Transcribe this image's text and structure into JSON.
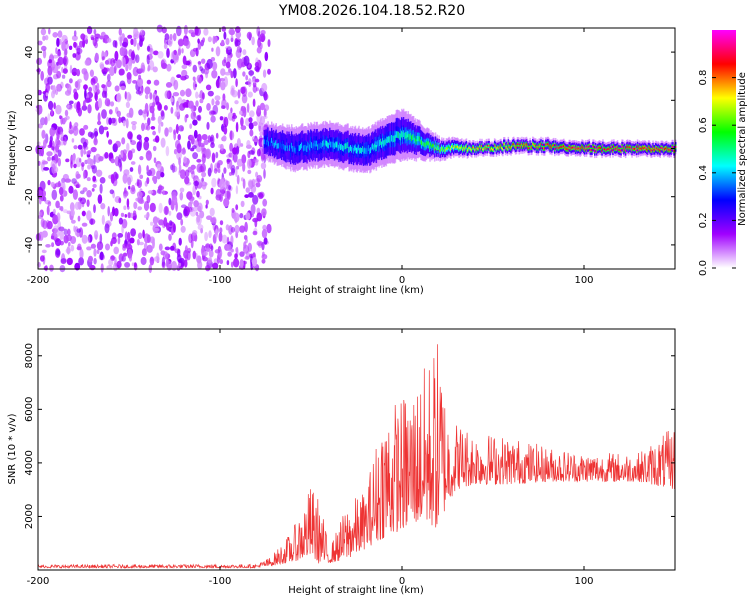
{
  "title": "YM08.2026.104.18.52.R20",
  "chart_data": [
    {
      "type": "heatmap",
      "name": "spectrogram",
      "xlabel": "Height of straight line (km)",
      "ylabel": "Frequency (Hz)",
      "xlim": [
        -200,
        150
      ],
      "ylim": [
        -50,
        50
      ],
      "xticks": [
        -200,
        -100,
        0,
        100
      ],
      "yticks": [
        -40,
        -20,
        0,
        20,
        40
      ],
      "colorbar": {
        "label": "Normalized spectral amplitude",
        "range": [
          0.0,
          1.0
        ],
        "ticks": [
          0.0,
          0.2,
          0.4,
          0.6,
          0.8
        ],
        "colormap": [
          "#ffffff",
          "#a000ff",
          "#0000ff",
          "#00ffff",
          "#00ff00",
          "#ffff00",
          "#ff0000",
          "#ff00ff"
        ]
      },
      "noise_region_end_x": -73,
      "signal_band": {
        "x": [
          -75,
          -60,
          -40,
          -20,
          0,
          20,
          40,
          60,
          80,
          100,
          120,
          150
        ],
        "center_y": [
          3,
          0,
          2,
          -1,
          6,
          0,
          0,
          1,
          1,
          0,
          0,
          0
        ],
        "half_width_y": [
          5,
          6,
          6,
          6,
          7,
          3,
          2,
          2,
          2,
          2,
          2,
          2
        ],
        "peak_amplitude": [
          0.35,
          0.35,
          0.4,
          0.4,
          0.45,
          0.6,
          0.75,
          0.8,
          0.85,
          0.9,
          0.9,
          0.9
        ]
      }
    },
    {
      "type": "line",
      "name": "snr",
      "xlabel": "Height of straight line (km)",
      "ylabel": "SNR (10 * v/v)",
      "xlim": [
        -200,
        150
      ],
      "ylim": [
        0,
        9000
      ],
      "xticks": [
        -200,
        -100,
        0,
        100
      ],
      "yticks": [
        2000,
        4000,
        6000,
        8000
      ],
      "color": "#ee3333",
      "series": [
        {
          "name": "SNR",
          "envelope": {
            "x": [
              -200,
              -80,
              -72,
              -60,
              -50,
              -45,
              -40,
              -30,
              -20,
              -10,
              0,
              10,
              20,
              25,
              30,
              40,
              60,
              80,
              100,
              130,
              150
            ],
            "low": [
              80,
              80,
              150,
              300,
              500,
              200,
              250,
              400,
              800,
              1200,
              1500,
              1800,
              1500,
              2500,
              3000,
              3200,
              3200,
              3300,
              3300,
              3300,
              3000
            ],
            "high": [
              200,
              220,
              500,
              1500,
              3200,
              2600,
              800,
              2500,
              3000,
              6200,
              6500,
              7300,
              8800,
              6000,
              5600,
              5200,
              5000,
              4600,
              4400,
              4400,
              5400
            ]
          }
        }
      ]
    }
  ]
}
